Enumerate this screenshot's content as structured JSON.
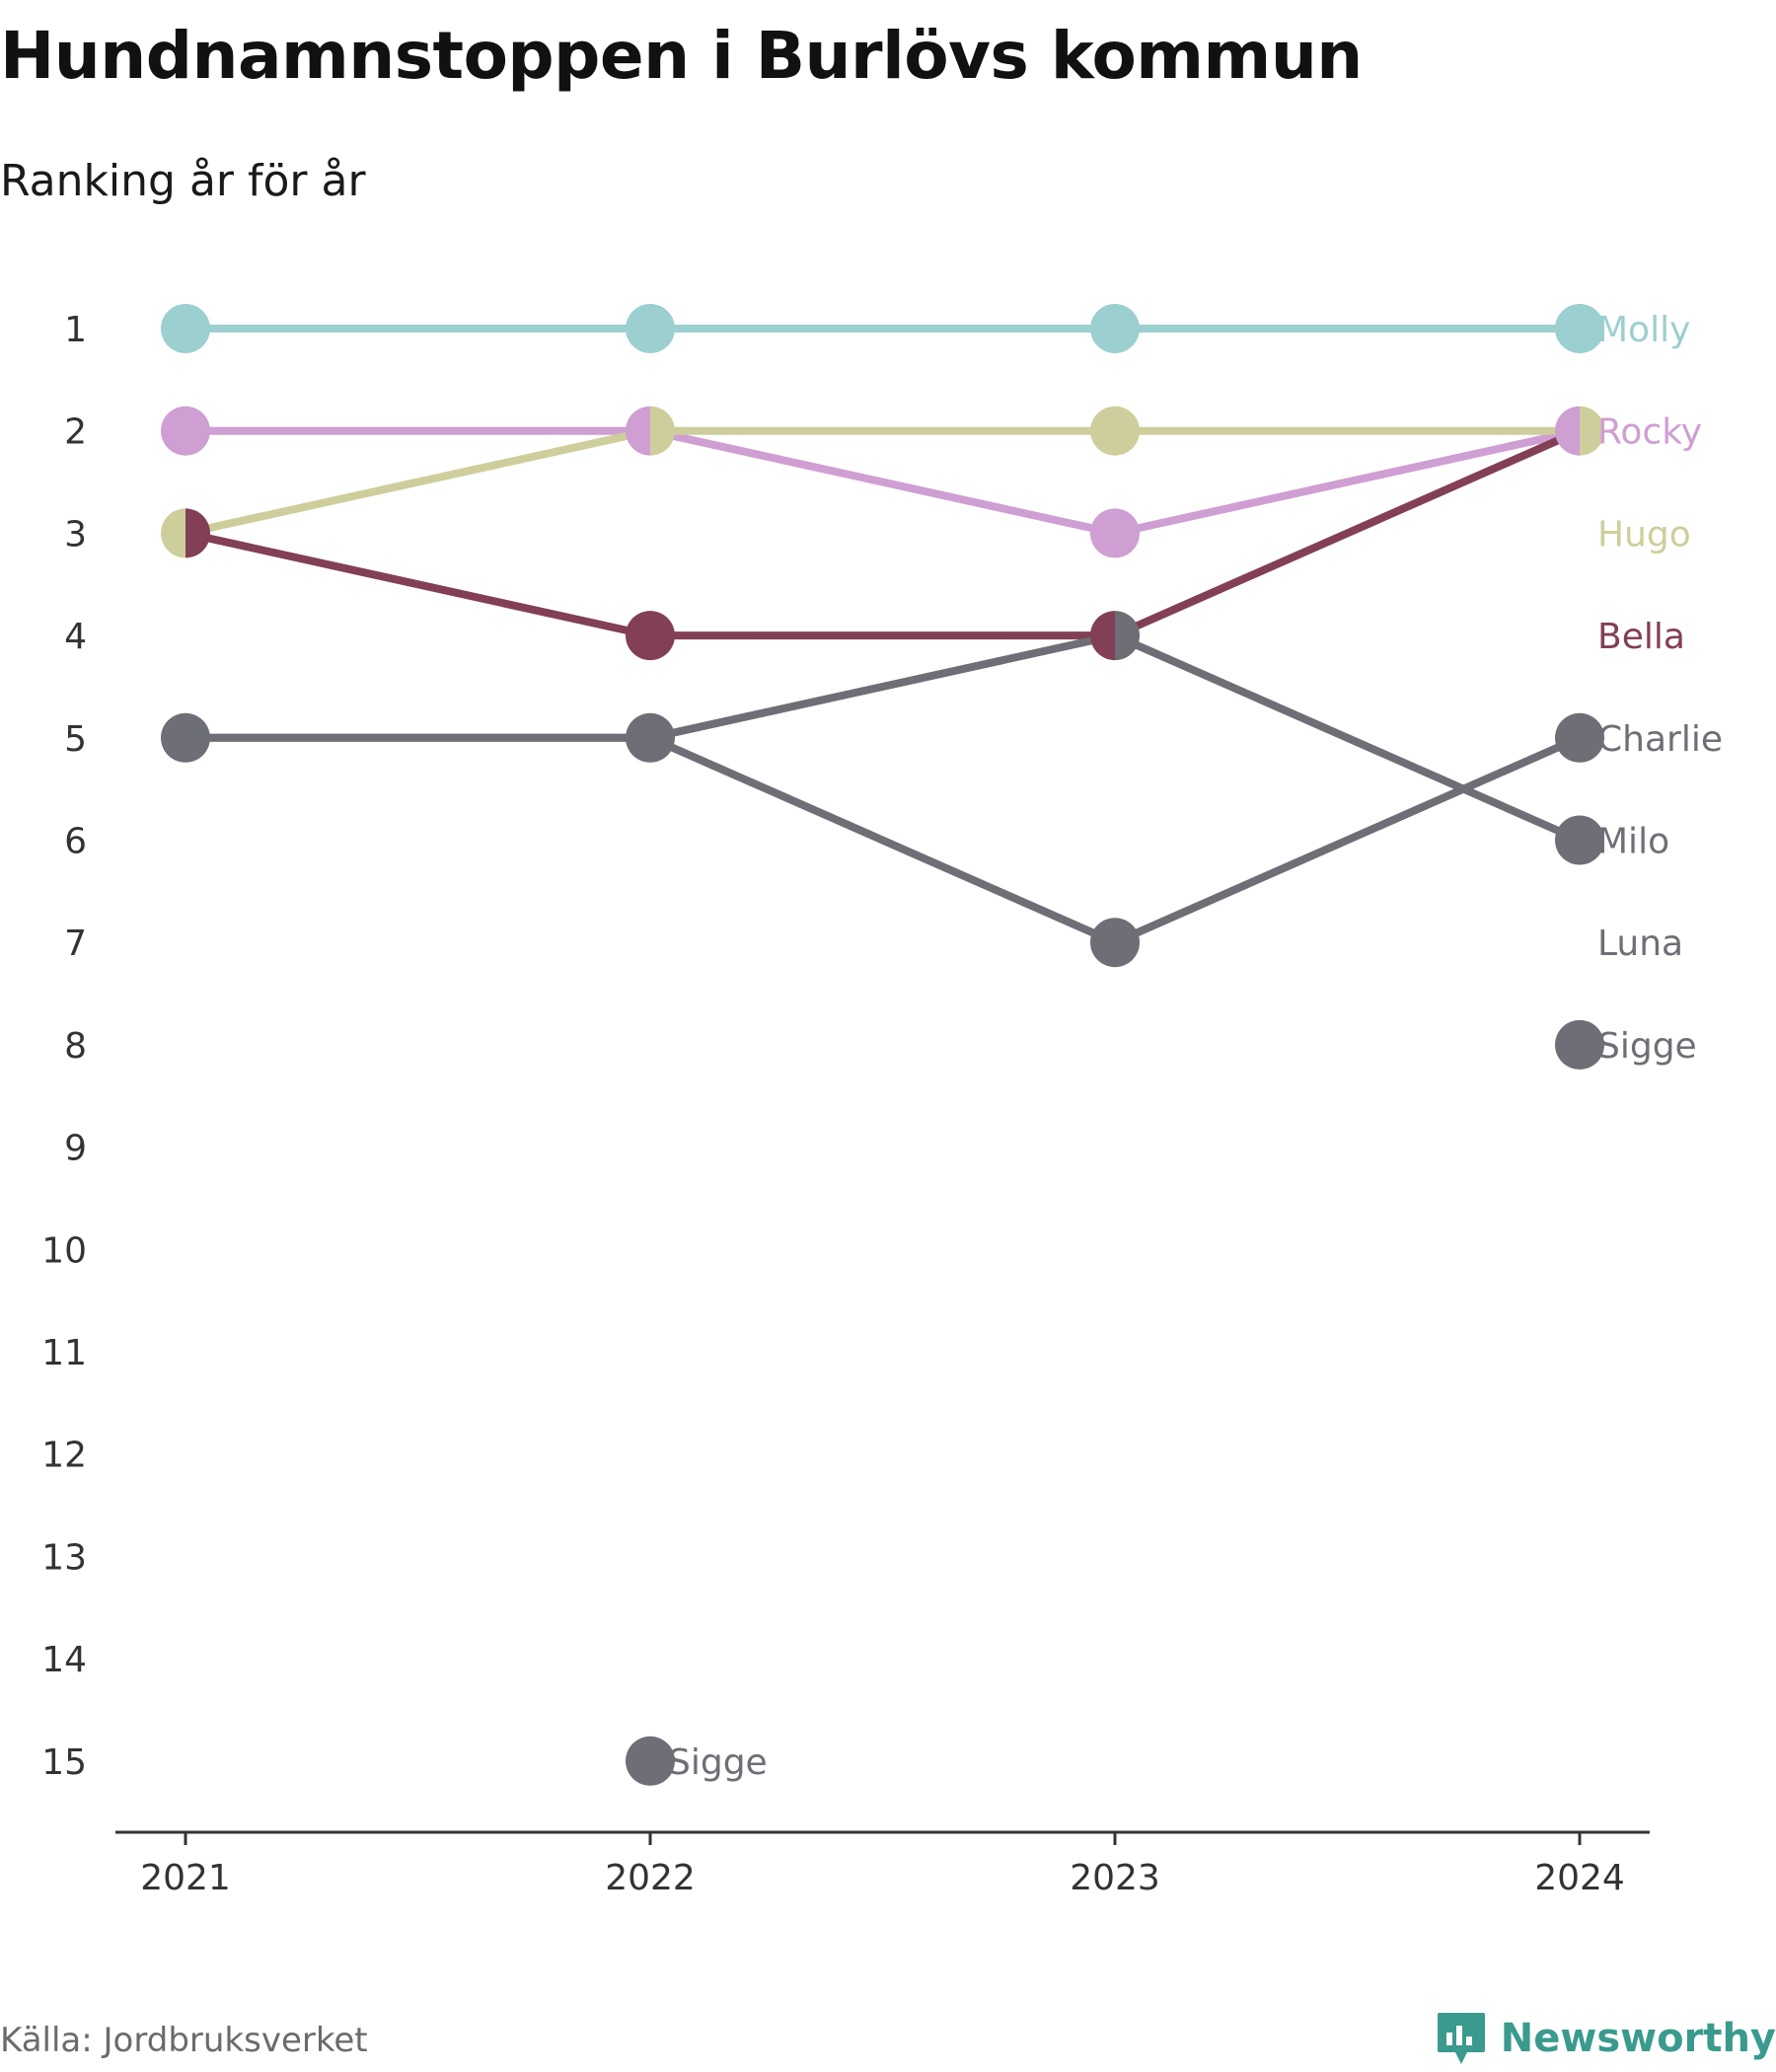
{
  "title": "Hundnamnstoppen i Burlövs kommun",
  "subtitle": "Ranking år för år",
  "source": "Källa: Jordbruksverket",
  "brand": "Newsworthy",
  "brand_icon": "bar-chart-speech-bubble-icon",
  "colors": {
    "brand": "#3a9a8e",
    "axis": "#333333"
  },
  "chart_data": {
    "type": "line",
    "x": [
      "2021",
      "2022",
      "2023",
      "2024"
    ],
    "y_ticks": [
      "1",
      "2",
      "3",
      "4",
      "5",
      "6",
      "7",
      "8",
      "9",
      "10",
      "11",
      "12",
      "13",
      "14",
      "15"
    ],
    "ylim": [
      1,
      15
    ],
    "y_reversed": true,
    "grid": false,
    "series": [
      {
        "name": "Molly",
        "color": "#9ccfcf",
        "values": [
          1,
          1,
          1,
          1
        ]
      },
      {
        "name": "Rocky",
        "color": "#cf9ed2",
        "values": [
          2,
          2,
          3,
          2
        ]
      },
      {
        "name": "Hugo",
        "color": "#cece9c",
        "values": [
          3,
          2,
          2,
          2
        ]
      },
      {
        "name": "Bella",
        "color": "#823f55",
        "values": [
          3,
          4,
          4,
          2
        ]
      },
      {
        "name": "Charlie",
        "color": "#6e6e76",
        "values": [
          5,
          5,
          7,
          5
        ]
      },
      {
        "name": "Milo",
        "color": "#6e6e76",
        "values": [
          5,
          5,
          4,
          6
        ]
      },
      {
        "name": "Luna",
        "color": "#6e6e76",
        "values": [
          null,
          null,
          null,
          null
        ]
      },
      {
        "name": "Sigge",
        "color": "#6e6e76",
        "values": [
          null,
          15,
          null,
          8
        ]
      }
    ],
    "labels": [
      {
        "text": "Molly",
        "x": "2024",
        "y": 1,
        "color": "#9ccfcf"
      },
      {
        "text": "Rocky",
        "x": "2024",
        "y": 2,
        "color": "#cf9ed2"
      },
      {
        "text": "Hugo",
        "x": "2024",
        "y": 3,
        "color": "#cece9c"
      },
      {
        "text": "Bella",
        "x": "2024",
        "y": 4,
        "color": "#823f55"
      },
      {
        "text": "Charlie",
        "x": "2024",
        "y": 5,
        "color": "#6e6e76"
      },
      {
        "text": "Milo",
        "x": "2024",
        "y": 6,
        "color": "#6e6e76"
      },
      {
        "text": "Luna",
        "x": "2024",
        "y": 7,
        "color": "#6e6e76"
      },
      {
        "text": "Sigge",
        "x": "2024",
        "y": 8,
        "color": "#6e6e76"
      },
      {
        "text": "Sigge",
        "x": "2022",
        "y": 15,
        "color": "#6e6e76"
      }
    ]
  }
}
